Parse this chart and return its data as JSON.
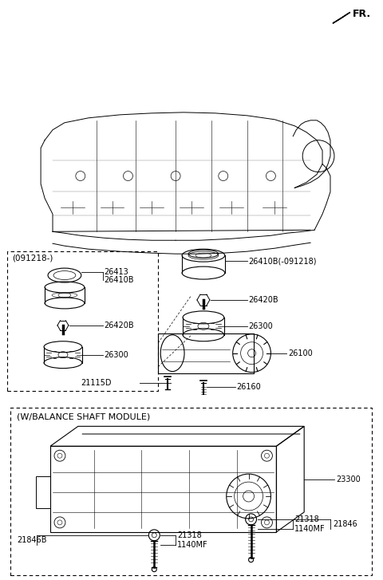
{
  "bg_color": "#ffffff",
  "line_color": "#000000",
  "fig_width": 4.8,
  "fig_height": 7.27,
  "labels": {
    "FR": "FR.",
    "091218": "(091218-)",
    "26413": "26413",
    "26410B_inset": "26410B",
    "26420B_inset": "26420B",
    "26300_inset": "26300",
    "26410B_main": "26410B(-091218)",
    "26420B_main": "26420B",
    "26300_main": "26300",
    "26100": "26100",
    "21115D": "21115D",
    "26160": "26160",
    "balance_module": "(W/BALANCE SHAFT MODULE)",
    "23300": "23300",
    "21318_left": "21318",
    "1140MF_left": "1140MF",
    "21846B": "21846B",
    "21318_right": "21318",
    "1140MF_right": "1140MF",
    "21846": "21846"
  }
}
